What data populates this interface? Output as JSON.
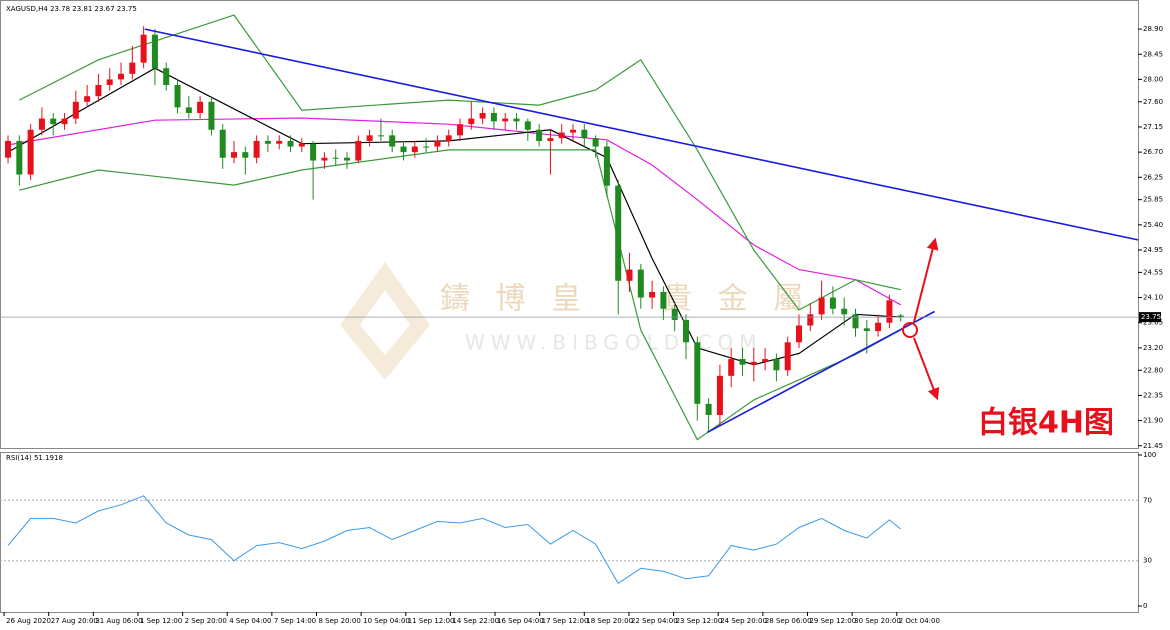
{
  "chart_data": [
    {
      "type": "candlestick",
      "title": "XAGUSD,H4 23.78 23.81 23.67 23.75",
      "xlim": [
        -0.71,
        100
      ],
      "ylim": [
        21.41,
        29.42
      ],
      "yticks": [
        {
          "value": 28.9,
          "label": "28.90"
        },
        28.45,
        {
          "value": 28.0,
          "label": "28.00"
        },
        {
          "value": 27.6,
          "label": "27.60"
        },
        27.15,
        {
          "value": 26.7,
          "label": "26.70"
        },
        26.25,
        25.85,
        {
          "value": 25.4,
          "label": "25.40"
        },
        24.95,
        24.55,
        {
          "value": 24.1,
          "label": "24.10"
        },
        23.65,
        {
          "value": 23.2,
          "label": "23.20"
        },
        {
          "value": 22.8,
          "label": "22.80"
        },
        22.35,
        {
          "value": 21.9,
          "label": "21.90"
        },
        21.45
      ],
      "xticks": [
        {
          "value": -0.35,
          "label": "26 Aug 2020"
        },
        {
          "value": 3.6,
          "label": "27 Aug 20:00"
        },
        {
          "value": 7.55,
          "label": "31 Aug 06:00"
        },
        {
          "value": 11.5,
          "label": "1 Sep 12:00"
        },
        {
          "value": 15.45,
          "label": "2 Sep 20:00"
        },
        {
          "value": 19.4,
          "label": "4 Sep 04:00"
        },
        {
          "value": 23.35,
          "label": "7 Sep 14:00"
        },
        {
          "value": 27.3,
          "label": "8 Sep 20:00"
        },
        {
          "value": 31.25,
          "label": "10 Sep 04:00"
        },
        {
          "value": 35.2,
          "label": "11 Sep 12:00"
        },
        {
          "value": 39.15,
          "label": "14 Sep 22:00"
        },
        {
          "value": 43.1,
          "label": "16 Sep 04:00"
        },
        {
          "value": 47.05,
          "label": "17 Sep 12:00"
        },
        {
          "value": 51.0,
          "label": "18 Sep 20:00"
        },
        {
          "value": 54.95,
          "label": "22 Sep 04:00"
        },
        {
          "value": 58.9,
          "label": "23 Sep 12:00"
        },
        {
          "value": 62.85,
          "label": "24 Sep 20:00"
        },
        {
          "value": 66.8,
          "label": "28 Sep 06:00"
        },
        {
          "value": 70.75,
          "label": "29 Sep 12:00"
        },
        {
          "value": 74.7,
          "label": "30 Sep 20:00"
        },
        {
          "value": 78.65,
          "label": "2 Oct 04:00"
        }
      ],
      "up_color": "#e8101a",
      "down_color": "#1f8a1f",
      "open": [
        26.6,
        26.9,
        26.3,
        27.1,
        27.3,
        27.2,
        27.3,
        27.6,
        27.7,
        27.9,
        28.0,
        28.1,
        28.3,
        28.8,
        28.2,
        27.9,
        27.5,
        27.4,
        27.6,
        27.1,
        26.6,
        26.7,
        26.6,
        26.9,
        26.85,
        26.9,
        26.8,
        26.85,
        26.55,
        26.6,
        26.6,
        26.55,
        26.9,
        27.0,
        27.0,
        26.8,
        26.7,
        26.8,
        26.8,
        26.9,
        27.0,
        27.2,
        27.3,
        27.4,
        27.25,
        27.3,
        27.25,
        27.1,
        26.9,
        26.95,
        27.05,
        27.1,
        26.95,
        26.8,
        26.1,
        24.4,
        24.6,
        24.1,
        24.2,
        23.9,
        23.7,
        23.3,
        22.2,
        22.0,
        22.7,
        23.0,
        22.9,
        22.95,
        23.0,
        22.8,
        23.3,
        23.6,
        23.8,
        24.1,
        23.9,
        23.8,
        23.55,
        23.5,
        23.65,
        23.78
      ],
      "high": [
        27.0,
        27.0,
        27.2,
        27.5,
        27.4,
        27.4,
        27.8,
        27.9,
        28.1,
        28.2,
        28.3,
        28.6,
        28.95,
        28.9,
        28.3,
        28.0,
        27.7,
        27.7,
        27.7,
        27.2,
        26.9,
        26.8,
        27.0,
        27.0,
        27.0,
        27.0,
        26.95,
        26.9,
        26.7,
        26.75,
        26.7,
        27.0,
        27.1,
        27.3,
        27.1,
        26.9,
        26.9,
        26.95,
        27.0,
        27.1,
        27.3,
        27.6,
        27.5,
        27.5,
        27.4,
        27.4,
        27.3,
        27.2,
        27.1,
        27.2,
        27.2,
        27.2,
        27.0,
        26.9,
        26.2,
        24.9,
        24.7,
        24.4,
        24.3,
        24.0,
        23.8,
        23.4,
        22.3,
        22.9,
        23.2,
        23.2,
        23.2,
        23.2,
        23.1,
        23.4,
        23.8,
        24.0,
        24.4,
        24.3,
        24.1,
        23.9,
        23.7,
        23.8,
        24.15,
        23.81
      ],
      "low": [
        26.5,
        26.1,
        26.2,
        27.0,
        27.0,
        27.1,
        27.2,
        27.5,
        27.6,
        27.8,
        27.9,
        28.0,
        28.2,
        27.9,
        27.8,
        27.4,
        27.3,
        27.3,
        27.0,
        26.4,
        26.5,
        26.3,
        26.5,
        26.7,
        26.75,
        26.7,
        26.7,
        25.85,
        26.4,
        26.45,
        26.4,
        26.5,
        26.8,
        26.9,
        26.7,
        26.55,
        26.6,
        26.7,
        26.7,
        26.8,
        26.9,
        27.1,
        27.2,
        27.1,
        27.1,
        27.1,
        26.9,
        26.8,
        26.3,
        26.85,
        26.9,
        26.8,
        26.6,
        25.9,
        23.8,
        24.2,
        23.9,
        23.9,
        23.7,
        23.5,
        23.0,
        21.9,
        21.7,
        21.8,
        22.5,
        22.7,
        22.6,
        22.8,
        22.6,
        22.7,
        23.2,
        23.5,
        23.7,
        23.8,
        23.6,
        23.4,
        23.1,
        23.4,
        23.55,
        23.67
      ],
      "close": [
        26.9,
        26.3,
        27.1,
        27.3,
        27.2,
        27.3,
        27.6,
        27.7,
        27.9,
        28.0,
        28.1,
        28.3,
        28.8,
        28.2,
        27.9,
        27.5,
        27.4,
        27.6,
        27.1,
        26.6,
        26.7,
        26.6,
        26.9,
        26.85,
        26.9,
        26.8,
        26.85,
        26.55,
        26.6,
        26.6,
        26.55,
        26.9,
        27.0,
        27.0,
        26.8,
        26.7,
        26.8,
        26.8,
        26.9,
        27.0,
        27.2,
        27.3,
        27.4,
        27.25,
        27.3,
        27.25,
        27.1,
        26.9,
        26.95,
        27.05,
        27.1,
        26.95,
        26.8,
        26.1,
        24.4,
        24.6,
        24.1,
        24.2,
        23.9,
        23.7,
        23.3,
        22.2,
        22.0,
        22.7,
        23.0,
        22.9,
        22.95,
        23.0,
        22.8,
        23.3,
        23.6,
        23.8,
        24.1,
        23.9,
        23.8,
        23.55,
        23.5,
        23.65,
        24.05,
        23.75
      ],
      "series": [
        {
          "color": "#e020e0",
          "x": [
            0,
            13,
            26,
            39,
            48,
            53,
            57,
            61,
            66,
            70,
            75,
            79
          ],
          "values": [
            26.83,
            27.27,
            27.31,
            27.2,
            27.01,
            26.92,
            26.47,
            25.85,
            25.04,
            24.6,
            24.42,
            23.97
          ]
        },
        {
          "color": "#000000",
          "x": [
            0,
            13,
            26,
            39,
            48,
            53,
            57,
            61,
            66,
            70,
            75,
            79
          ],
          "values": [
            26.7,
            28.2,
            26.85,
            26.9,
            27.1,
            26.6,
            24.8,
            23.2,
            22.9,
            23.1,
            23.8,
            23.75
          ]
        },
        {
          "color": "#3a9a3a",
          "x": [
            1,
            8,
            20,
            26,
            39,
            47,
            52,
            56,
            61,
            66,
            70,
            75,
            79
          ],
          "values": [
            27.63,
            28.35,
            29.15,
            27.45,
            27.63,
            27.54,
            27.81,
            28.35,
            26.74,
            24.95,
            23.88,
            24.42,
            24.24
          ]
        },
        {
          "color": "#3a9a3a",
          "x": [
            1,
            8,
            20,
            26,
            39,
            47,
            52,
            56,
            61,
            66,
            70,
            75,
            79
          ],
          "values": [
            26.02,
            26.38,
            26.11,
            26.38,
            26.74,
            26.74,
            26.74,
            23.52,
            21.56,
            22.27,
            22.63,
            23.08,
            23.52
          ]
        }
      ],
      "trendlines": [
        {
          "color": "#1a1ae0",
          "x": [
            12.1,
            100
          ],
          "values": [
            28.9,
            25.13
          ]
        },
        {
          "color": "#1a1ae0",
          "x": [
            61.9,
            82.0
          ],
          "values": [
            21.69,
            23.85
          ]
        }
      ],
      "price_line": 23.75,
      "watermark": "鑄 博 皇 　 貴 金 屬",
      "watermark_url": "WWW.BIBGOLD.COM",
      "annotation": "白银4H图"
    },
    {
      "type": "line",
      "title": "RSI(14) 51.1918",
      "color": "#3a9ae8",
      "xlim": [
        -0.71,
        100
      ],
      "ylim": [
        -3.97,
        101.99
      ],
      "yticks": [
        0,
        30,
        70,
        100
      ],
      "x": [
        0,
        2,
        4,
        6,
        8,
        10,
        12,
        14,
        16,
        18,
        20,
        22,
        24,
        26,
        28,
        30,
        32,
        34,
        36,
        38,
        40,
        42,
        44,
        46,
        48,
        50,
        52,
        54,
        56,
        58,
        60,
        62,
        64,
        66,
        68,
        70,
        72,
        74,
        76,
        78,
        79
      ],
      "values": [
        40,
        58,
        58,
        55,
        63,
        67,
        73,
        55,
        47,
        44,
        30,
        40,
        42,
        38,
        43,
        50,
        52,
        44,
        50,
        56,
        55,
        58,
        52,
        54,
        41,
        50,
        41,
        15,
        25,
        23,
        18,
        20,
        40,
        37,
        41,
        52,
        58,
        50,
        45,
        57,
        51
      ]
    }
  ]
}
